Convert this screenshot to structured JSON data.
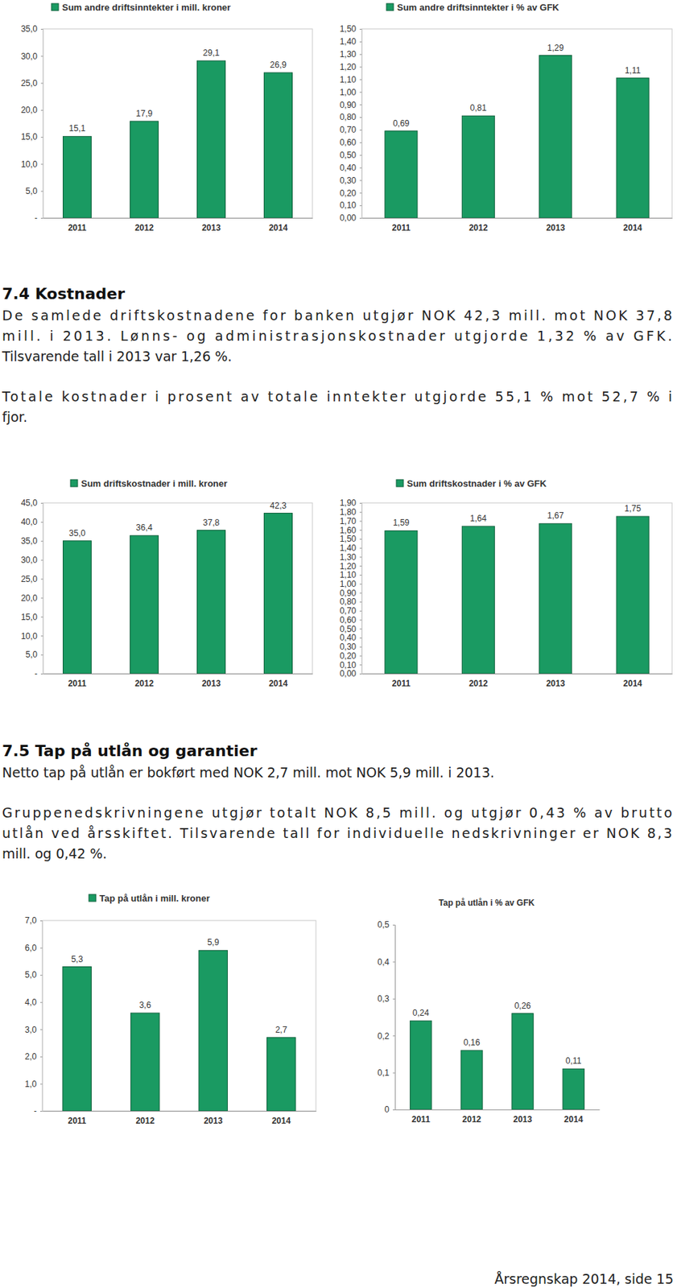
{
  "document": {
    "sections": [
      {
        "heading": "7.4 Kostnader",
        "paragraphs": [
          [
            "De samlede driftskostnadene for banken utgjør NOK 42,3 mill. mot NOK 37,8",
            "mill. i 2013. Lønns- og administrasjonskostnader utgjorde 1,32 % av GFK.",
            "Tilsvarende tall i 2013 var 1,26 %."
          ],
          [
            "Totale kostnader i prosent av totale inntekter utgjorde 55,1 % mot 52,7 % i",
            "fjor."
          ]
        ]
      },
      {
        "heading": "7.5 Tap på utlån og garantier",
        "paragraphs": [
          [
            "Netto tap på utlån er bokført med NOK 2,7 mill. mot NOK 5,9 mill. i 2013."
          ],
          [
            "Gruppenedskrivningene utgjør totalt NOK 8,5 mill. og utgjør 0,43 % av brutto",
            "utlån ved årsskiftet. Tilsvarende tall for individuelle nedskrivninger er NOK 8,3",
            "mill. og 0,42 %."
          ]
        ]
      }
    ],
    "footer": "Årsregnskap 2014, side 15"
  },
  "chart_data": [
    {
      "type": "bar",
      "categories": [
        "2011",
        "2012",
        "2013",
        "2014"
      ],
      "series": [
        {
          "name": "Sum andre driftsinntekter i mill. kroner",
          "color": "#1a9a62",
          "values": [
            15.1,
            17.9,
            29.1,
            26.9
          ],
          "value_labels": [
            "15,1",
            "17,9",
            "29,1",
            "26,9"
          ]
        }
      ],
      "ylim": [
        0,
        35
      ],
      "yticks": [
        {
          "value": 0,
          "label": "-"
        },
        {
          "value": 5,
          "label": "5,0"
        },
        {
          "value": 10,
          "label": "10,0"
        },
        {
          "value": 15,
          "label": "15,0"
        },
        {
          "value": 20,
          "label": "20,0"
        },
        {
          "value": 25,
          "label": "25,0"
        },
        {
          "value": 30,
          "label": "30,0"
        },
        {
          "value": 35,
          "label": "35,0"
        }
      ],
      "legend": "top",
      "data_labels": true
    },
    {
      "type": "bar",
      "categories": [
        "2011",
        "2012",
        "2013",
        "2014"
      ],
      "series": [
        {
          "name": "Sum andre driftsinntekter i % av GFK",
          "color": "#1a9a62",
          "values": [
            0.69,
            0.81,
            1.29,
            1.11
          ],
          "value_labels": [
            "0,69",
            "0,81",
            "1,29",
            "1,11"
          ]
        }
      ],
      "ylim": [
        0,
        1.5
      ],
      "yticks": [
        {
          "value": 0,
          "label": "0,00"
        },
        {
          "value": 0.1,
          "label": "0,10"
        },
        {
          "value": 0.2,
          "label": "0,20"
        },
        {
          "value": 0.3,
          "label": "0,30"
        },
        {
          "value": 0.4,
          "label": "0,40"
        },
        {
          "value": 0.5,
          "label": "0,50"
        },
        {
          "value": 0.6,
          "label": "0,60"
        },
        {
          "value": 0.7,
          "label": "0,70"
        },
        {
          "value": 0.8,
          "label": "0,80"
        },
        {
          "value": 0.9,
          "label": "0,90"
        },
        {
          "value": 1.0,
          "label": "1,00"
        },
        {
          "value": 1.1,
          "label": "1,10"
        },
        {
          "value": 1.2,
          "label": "1,20"
        },
        {
          "value": 1.3,
          "label": "1,30"
        },
        {
          "value": 1.4,
          "label": "1,40"
        },
        {
          "value": 1.5,
          "label": "1,50"
        }
      ],
      "legend": "top",
      "data_labels": true
    },
    {
      "type": "bar",
      "categories": [
        "2011",
        "2012",
        "2013",
        "2014"
      ],
      "series": [
        {
          "name": "Sum driftskostnader i mill. kroner",
          "color": "#1a9a62",
          "values": [
            35.0,
            36.4,
            37.8,
            42.3
          ],
          "value_labels": [
            "35,0",
            "36,4",
            "37,8",
            "42,3"
          ]
        }
      ],
      "ylim": [
        0,
        45
      ],
      "yticks": [
        {
          "value": 0,
          "label": "-"
        },
        {
          "value": 5,
          "label": "5,0"
        },
        {
          "value": 10,
          "label": "10,0"
        },
        {
          "value": 15,
          "label": "15,0"
        },
        {
          "value": 20,
          "label": "20,0"
        },
        {
          "value": 25,
          "label": "25,0"
        },
        {
          "value": 30,
          "label": "30,0"
        },
        {
          "value": 35,
          "label": "35,0"
        },
        {
          "value": 40,
          "label": "40,0"
        },
        {
          "value": 45,
          "label": "45,0"
        }
      ],
      "legend": "top",
      "data_labels": true
    },
    {
      "type": "bar",
      "categories": [
        "2011",
        "2012",
        "2013",
        "2014"
      ],
      "series": [
        {
          "name": "Sum driftskostnader i % av GFK",
          "color": "#1a9a62",
          "values": [
            1.59,
            1.64,
            1.67,
            1.75
          ],
          "value_labels": [
            "1,59",
            "1,64",
            "1,67",
            "1,75"
          ]
        }
      ],
      "ylim": [
        0,
        1.9
      ],
      "yticks": [
        {
          "value": 0,
          "label": "0,00"
        },
        {
          "value": 0.1,
          "label": "0,10"
        },
        {
          "value": 0.2,
          "label": "0,20"
        },
        {
          "value": 0.3,
          "label": "0,30"
        },
        {
          "value": 0.4,
          "label": "0,40"
        },
        {
          "value": 0.5,
          "label": "0,50"
        },
        {
          "value": 0.6,
          "label": "0,60"
        },
        {
          "value": 0.7,
          "label": "0,70"
        },
        {
          "value": 0.8,
          "label": "0,80"
        },
        {
          "value": 0.9,
          "label": "0,90"
        },
        {
          "value": 1.0,
          "label": "1,00"
        },
        {
          "value": 1.1,
          "label": "1,10"
        },
        {
          "value": 1.2,
          "label": "1,20"
        },
        {
          "value": 1.3,
          "label": "1,30"
        },
        {
          "value": 1.4,
          "label": "1,40"
        },
        {
          "value": 1.5,
          "label": "1,50"
        },
        {
          "value": 1.6,
          "label": "1,60"
        },
        {
          "value": 1.7,
          "label": "1,70"
        },
        {
          "value": 1.8,
          "label": "1,80"
        },
        {
          "value": 1.9,
          "label": "1,90"
        }
      ],
      "legend": "top",
      "data_labels": true
    },
    {
      "type": "bar",
      "categories": [
        "2011",
        "2012",
        "2013",
        "2014"
      ],
      "series": [
        {
          "name": "Tap på utlån i mill. kroner",
          "color": "#1a9a62",
          "values": [
            5.3,
            3.6,
            5.9,
            2.7
          ],
          "value_labels": [
            "5,3",
            "3,6",
            "5,9",
            "2,7"
          ]
        }
      ],
      "ylim": [
        0,
        7
      ],
      "yticks": [
        {
          "value": 0,
          "label": "-"
        },
        {
          "value": 1,
          "label": "1,0"
        },
        {
          "value": 2,
          "label": "2,0"
        },
        {
          "value": 3,
          "label": "3,0"
        },
        {
          "value": 4,
          "label": "4,0"
        },
        {
          "value": 5,
          "label": "5,0"
        },
        {
          "value": 6,
          "label": "6,0"
        },
        {
          "value": 7,
          "label": "7,0"
        }
      ],
      "legend": "top",
      "data_labels": true
    },
    {
      "type": "bar",
      "title": "Tap på utlån i % av GFK",
      "categories": [
        "2011",
        "2012",
        "2013",
        "2014"
      ],
      "values": [
        0.24,
        0.16,
        0.26,
        0.11
      ],
      "value_labels": [
        "0,24",
        "0,16",
        "0,26",
        "0,11"
      ],
      "color": "#1a9a62",
      "ylim": [
        0,
        0.5
      ],
      "yticks": [
        0,
        {
          "value": 0.1,
          "label": "0,1"
        },
        {
          "value": 0.2,
          "label": "0,2"
        },
        {
          "value": 0.3,
          "label": "0,3"
        },
        {
          "value": 0.4,
          "label": "0,4"
        },
        {
          "value": 0.5,
          "label": "0,5"
        }
      ],
      "data_labels": true
    }
  ]
}
